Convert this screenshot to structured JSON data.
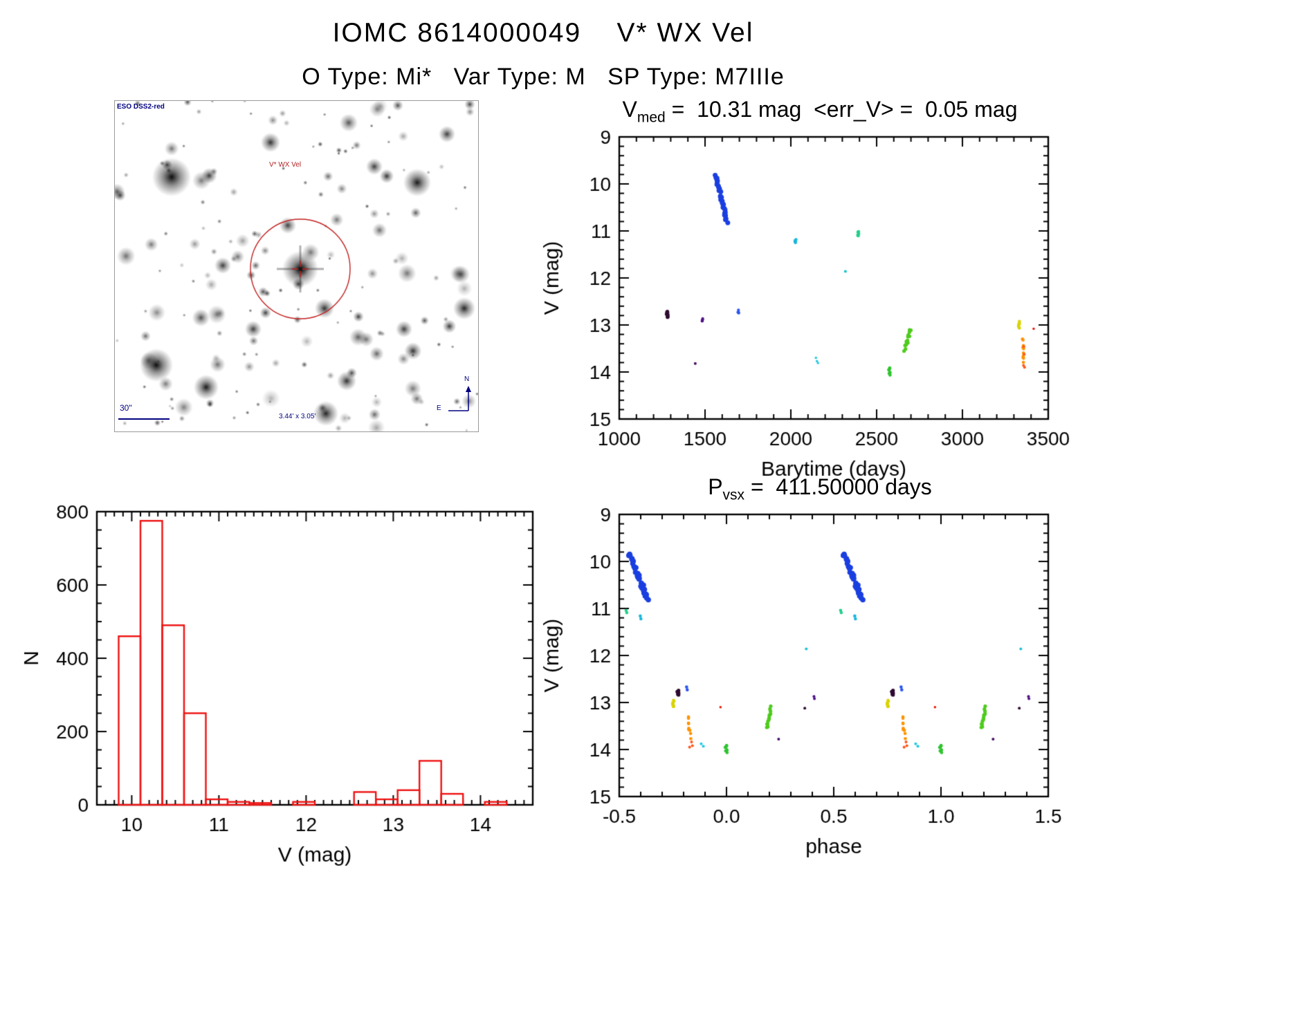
{
  "header": {
    "title": "IOMC 8614000049    V* WX Vel",
    "subtitle": "O Type: Mi*   Var Type: M   SP Type: M7IIIe"
  },
  "finder": {
    "survey": "ESO DSS2-red",
    "target": "V* WX Vel",
    "scale": "30\"",
    "size": "3.44' x 3.05'",
    "north": "N",
    "east": "E",
    "annotation_color": "#000080",
    "target_color": "#b22222"
  },
  "chart_data": [
    {
      "id": "lightcurve",
      "type": "scatter",
      "title": {
        "base": "V",
        "sub": "med",
        "rest": " =  10.31 mag  <err_V> =  0.05 mag"
      },
      "xlabel": "Barytime (days)",
      "ylabel": "V (mag)",
      "xlim": [
        1000,
        3500
      ],
      "ylim": [
        9,
        15
      ],
      "y_inverted": true,
      "xticks": [
        [
          1000,
          "1000"
        ],
        [
          1500,
          "1500"
        ],
        [
          2000,
          "2000"
        ],
        [
          2500,
          "2500"
        ],
        [
          3000,
          "3000"
        ],
        [
          3500,
          "3500"
        ]
      ],
      "yticks": [
        [
          9,
          "9"
        ],
        [
          10,
          "10"
        ],
        [
          11,
          "11"
        ],
        [
          12,
          "12"
        ],
        [
          13,
          "13"
        ],
        [
          14,
          "14"
        ],
        [
          15,
          "15"
        ]
      ],
      "xminor": 100,
      "yminor": 0.2,
      "series": [
        {
          "name": "epoch-1",
          "color": "#2e0b30",
          "kind": "cloud",
          "center": [
            1280,
            12.78
          ],
          "spread": [
            4,
            0.07
          ],
          "n": 9,
          "size": 4.5
        },
        {
          "name": "epoch-2",
          "color": "#471066",
          "kind": "dots",
          "points": [
            [
              1443,
              13.82
            ]
          ],
          "size": 3.5
        },
        {
          "name": "epoch-3",
          "color": "#4f1287",
          "kind": "cloud",
          "center": [
            1484,
            12.9
          ],
          "spread": [
            3,
            0.05
          ],
          "n": 6,
          "size": 3.5
        },
        {
          "name": "epoch-4",
          "color": "#1a3fe0",
          "kind": "streak",
          "from": [
            1560,
            9.8
          ],
          "to": [
            1628,
            10.8
          ],
          "n": 34,
          "size": 6,
          "jitter": [
            6,
            0.04
          ]
        },
        {
          "name": "epoch-5",
          "color": "#2b55ee",
          "kind": "cloud",
          "center": [
            1694,
            12.7
          ],
          "spread": [
            3,
            0.05
          ],
          "n": 5,
          "size": 3.5
        },
        {
          "name": "epoch-6",
          "color": "#19b7dc",
          "kind": "cloud",
          "center": [
            2028,
            11.2
          ],
          "spread": [
            4,
            0.05
          ],
          "n": 6,
          "size": 4
        },
        {
          "name": "epoch-7",
          "color": "#1fc9e2",
          "kind": "dots",
          "points": [
            [
              2146,
              13.7
            ],
            [
              2152,
              13.77
            ],
            [
              2158,
              13.81
            ]
          ],
          "size": 3
        },
        {
          "name": "epoch-8",
          "color": "#17c4cf",
          "kind": "dots",
          "points": [
            [
              2318,
              11.86
            ]
          ],
          "size": 3.5
        },
        {
          "name": "epoch-9",
          "color": "#23cf8a",
          "kind": "cloud",
          "center": [
            2392,
            11.06
          ],
          "spread": [
            4,
            0.05
          ],
          "n": 6,
          "size": 4
        },
        {
          "name": "epoch-10",
          "color": "#2fc42f",
          "kind": "cloud",
          "center": [
            2576,
            14.0
          ],
          "spread": [
            5,
            0.09
          ],
          "n": 9,
          "size": 4
        },
        {
          "name": "epoch-11",
          "color": "#4ecb1c",
          "kind": "streak",
          "from": [
            2662,
            13.54
          ],
          "to": [
            2697,
            13.12
          ],
          "n": 14,
          "size": 4.5,
          "jitter": [
            4,
            0.05
          ]
        },
        {
          "name": "epoch-12",
          "color": "#d9d400",
          "kind": "cloud",
          "center": [
            3330,
            13.0
          ],
          "spread": [
            4,
            0.08
          ],
          "n": 9,
          "size": 4
        },
        {
          "name": "epoch-13",
          "color": "#ff9300",
          "kind": "streak",
          "from": [
            3352,
            13.3
          ],
          "to": [
            3356,
            13.78
          ],
          "n": 10,
          "size": 4,
          "jitter": [
            3,
            0.04
          ]
        },
        {
          "name": "epoch-14",
          "color": "#ff571c",
          "kind": "dots",
          "points": [
            [
              3358,
              13.46
            ],
            [
              3360,
              13.62
            ],
            [
              3356,
              13.86
            ],
            [
              3362,
              13.9
            ]
          ],
          "size": 3.5
        },
        {
          "name": "epoch-15",
          "color": "#ea1507",
          "kind": "dots",
          "points": [
            [
              3415,
              13.08
            ]
          ],
          "size": 3
        }
      ]
    },
    {
      "id": "magnitude-histogram",
      "type": "bar",
      "xlabel": "V (mag)",
      "ylabel": "N",
      "xlim": [
        9.6,
        14.6
      ],
      "ylim": [
        0,
        800
      ],
      "xticks": [
        [
          10,
          "10"
        ],
        [
          11,
          "11"
        ],
        [
          12,
          "12"
        ],
        [
          13,
          "13"
        ],
        [
          14,
          "14"
        ]
      ],
      "yticks": [
        [
          0,
          "0"
        ],
        [
          200,
          "200"
        ],
        [
          400,
          "400"
        ],
        [
          600,
          "600"
        ],
        [
          800,
          "800"
        ]
      ],
      "xminor": 0.1,
      "yminor": 50,
      "bar_color": "#ee1111",
      "bin_width": 0.25,
      "bars": [
        {
          "x": 9.85,
          "n": 460
        },
        {
          "x": 10.1,
          "n": 775
        },
        {
          "x": 10.35,
          "n": 490
        },
        {
          "x": 10.6,
          "n": 250
        },
        {
          "x": 10.85,
          "n": 15
        },
        {
          "x": 11.1,
          "n": 8
        },
        {
          "x": 11.35,
          "n": 5
        },
        {
          "x": 11.85,
          "n": 8
        },
        {
          "x": 12.55,
          "n": 35
        },
        {
          "x": 12.8,
          "n": 15
        },
        {
          "x": 13.05,
          "n": 40
        },
        {
          "x": 13.3,
          "n": 120
        },
        {
          "x": 13.55,
          "n": 30
        },
        {
          "x": 14.05,
          "n": 8
        }
      ]
    },
    {
      "id": "phase-folded",
      "type": "scatter",
      "title": {
        "base": "P",
        "sub": "vsx",
        "rest": " =  411.50000 days"
      },
      "period_days": 411.5,
      "xlabel": "phase",
      "ylabel": "V (mag)",
      "xlim": [
        -0.5,
        1.5
      ],
      "ylim": [
        9,
        15
      ],
      "y_inverted": true,
      "repeat_offset": 1.0,
      "xticks": [
        [
          -0.5,
          "-0.5"
        ],
        [
          0,
          "0.0"
        ],
        [
          0.5,
          "0.5"
        ],
        [
          1,
          "1.0"
        ],
        [
          1.5,
          "1.5"
        ]
      ],
      "yticks": [
        [
          9,
          "9"
        ],
        [
          10,
          "10"
        ],
        [
          11,
          "11"
        ],
        [
          12,
          "12"
        ],
        [
          13,
          "13"
        ],
        [
          14,
          "14"
        ],
        [
          15,
          "15"
        ]
      ],
      "xminor": 0.1,
      "yminor": 0.2,
      "series": [
        {
          "name": "max-branch",
          "color": "#1a3fe0",
          "kind": "streak",
          "from": [
            -0.455,
            9.82
          ],
          "to": [
            -0.368,
            10.8
          ],
          "n": 34,
          "size": 6.5,
          "jitter": [
            0.006,
            0.04
          ]
        },
        {
          "name": "green-11",
          "color": "#23cf8a",
          "kind": "dots",
          "points": [
            [
              -0.468,
              11.04
            ],
            [
              -0.465,
              11.09
            ]
          ],
          "size": 4
        },
        {
          "name": "cyan-11",
          "color": "#19b7dc",
          "kind": "dots",
          "points": [
            [
              -0.402,
              11.16
            ],
            [
              -0.399,
              11.22
            ]
          ],
          "size": 4
        },
        {
          "name": "dark-127",
          "color": "#2e0b30",
          "kind": "cloud",
          "center": [
            -0.226,
            12.77
          ],
          "spread": [
            0.004,
            0.07
          ],
          "n": 9,
          "size": 4.5
        },
        {
          "name": "blue-127",
          "color": "#2b55ee",
          "kind": "dots",
          "points": [
            [
              -0.186,
              12.67
            ],
            [
              -0.183,
              12.73
            ]
          ],
          "size": 4
        },
        {
          "name": "yellow-13",
          "color": "#d9d400",
          "kind": "cloud",
          "center": [
            -0.247,
            13.0
          ],
          "spread": [
            0.004,
            0.09
          ],
          "n": 9,
          "size": 4
        },
        {
          "name": "orange-135",
          "color": "#ff9300",
          "kind": "streak",
          "from": [
            -0.176,
            13.3
          ],
          "to": [
            -0.17,
            13.74
          ],
          "n": 9,
          "size": 4,
          "jitter": [
            0.004,
            0.04
          ]
        },
        {
          "name": "red-139",
          "color": "#ff571c",
          "kind": "dots",
          "points": [
            [
              -0.163,
              13.84
            ],
            [
              -0.159,
              13.92
            ],
            [
              -0.172,
              13.95
            ]
          ],
          "size": 3.5
        },
        {
          "name": "cyan-139",
          "color": "#1fc9e2",
          "kind": "dots",
          "points": [
            [
              -0.118,
              13.88
            ],
            [
              -0.108,
              13.93
            ]
          ],
          "size": 3.5
        },
        {
          "name": "green-14",
          "color": "#2fc42f",
          "kind": "cloud",
          "center": [
            0.0,
            14.0
          ],
          "spread": [
            0.006,
            0.09
          ],
          "n": 9,
          "size": 4
        },
        {
          "name": "red-131",
          "color": "#ea1507",
          "kind": "dots",
          "points": [
            [
              -0.028,
              13.1
            ]
          ],
          "size": 3
        },
        {
          "name": "green-133",
          "color": "#4ecb1c",
          "kind": "streak",
          "from": [
            0.188,
            13.54
          ],
          "to": [
            0.208,
            13.12
          ],
          "n": 14,
          "size": 4.5,
          "jitter": [
            0.004,
            0.05
          ]
        },
        {
          "name": "purple-138",
          "color": "#471066",
          "kind": "dots",
          "points": [
            [
              0.243,
              13.78
            ]
          ],
          "size": 3.5
        },
        {
          "name": "dark-131",
          "color": "#2e0b30",
          "kind": "dots",
          "points": [
            [
              0.365,
              13.12
            ]
          ],
          "size": 3.5
        },
        {
          "name": "cyan-118",
          "color": "#17c4cf",
          "kind": "dots",
          "points": [
            [
              0.372,
              11.86
            ]
          ],
          "size": 3.5
        },
        {
          "name": "purple-129",
          "color": "#4f1287",
          "kind": "dots",
          "points": [
            [
              0.408,
              12.87
            ],
            [
              0.41,
              12.92
            ]
          ],
          "size": 3.5
        }
      ]
    }
  ]
}
